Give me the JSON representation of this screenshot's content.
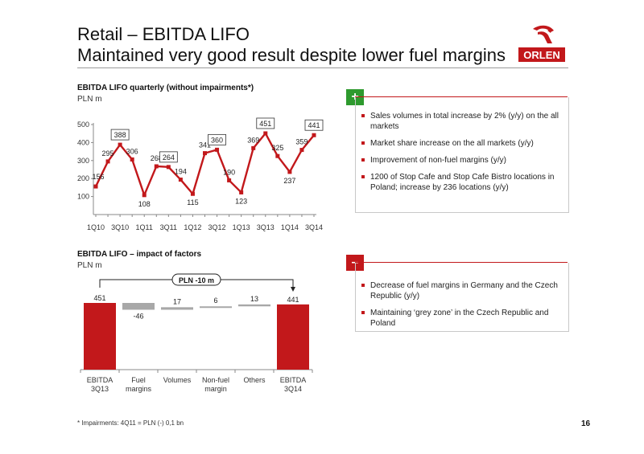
{
  "header": {
    "title_line1": "Retail – EBITDA LIFO",
    "title_line2": "Maintained very good result despite lower fuel margins",
    "brand": "ORLEN"
  },
  "colors": {
    "accent": "#c2181b",
    "positive": "#2e9a2e",
    "negative_bar": "#a8a8a8",
    "text": "#222222"
  },
  "chart_data": [
    {
      "type": "line",
      "title": "EBITDA LIFO quarterly (without impairments*)",
      "ylabel": "PLN m",
      "ylim": [
        0,
        500
      ],
      "yticks": [
        100,
        200,
        300,
        400,
        500
      ],
      "x": [
        "1Q10",
        "2Q10",
        "3Q10",
        "4Q10",
        "1Q11",
        "2Q11",
        "3Q11",
        "4Q11",
        "1Q12",
        "2Q12",
        "3Q12",
        "4Q12",
        "1Q13",
        "2Q13",
        "3Q13",
        "4Q13",
        "1Q14",
        "2Q14",
        "3Q14"
      ],
      "xtick_labels": [
        "1Q10",
        "3Q10",
        "1Q11",
        "3Q11",
        "1Q12",
        "3Q12",
        "1Q13",
        "3Q13",
        "1Q14",
        "3Q14"
      ],
      "series": [
        {
          "values": [
            156,
            295,
            388,
            306,
            108,
            268,
            264,
            194,
            115,
            341,
            360,
            190,
            123,
            369,
            451,
            325,
            237,
            359,
            441
          ]
        }
      ],
      "boxed_labels": [
        2,
        6,
        10,
        14,
        18
      ],
      "grid": false
    },
    {
      "type": "bar",
      "subtype": "waterfall",
      "title": "EBITDA LIFO – impact of factors",
      "ylabel": "PLN m",
      "categories": [
        "EBITDA\n3Q13",
        "Fuel\nmargins",
        "Volumes",
        "Non-fuel\nmargin",
        "Others",
        "EBITDA\n3Q14"
      ],
      "values": [
        451,
        -46,
        17,
        6,
        13,
        441
      ],
      "kinds": [
        "total",
        "delta",
        "delta",
        "delta",
        "delta",
        "total"
      ],
      "annotation": "PLN -10 m"
    }
  ],
  "positive_panel": {
    "sign": "+",
    "items": [
      "Sales volumes in total increase by 2% (y/y) on the all markets",
      "Market share increase on the all markets (y/y)",
      "Improvement of non-fuel margins (y/y)",
      "1200 of Stop Cafe and Stop Cafe Bistro locations in Poland; increase by 236 locations (y/y)"
    ]
  },
  "negative_panel": {
    "sign": "–",
    "items": [
      "Decrease of fuel margins in Germany and the Czech Republic (y/y)",
      "Maintaining ‘grey zone’ in the Czech Republic and Poland"
    ]
  },
  "footnote": "* Impairments: 4Q11 = PLN (-) 0,1 bn",
  "page_number": "16"
}
